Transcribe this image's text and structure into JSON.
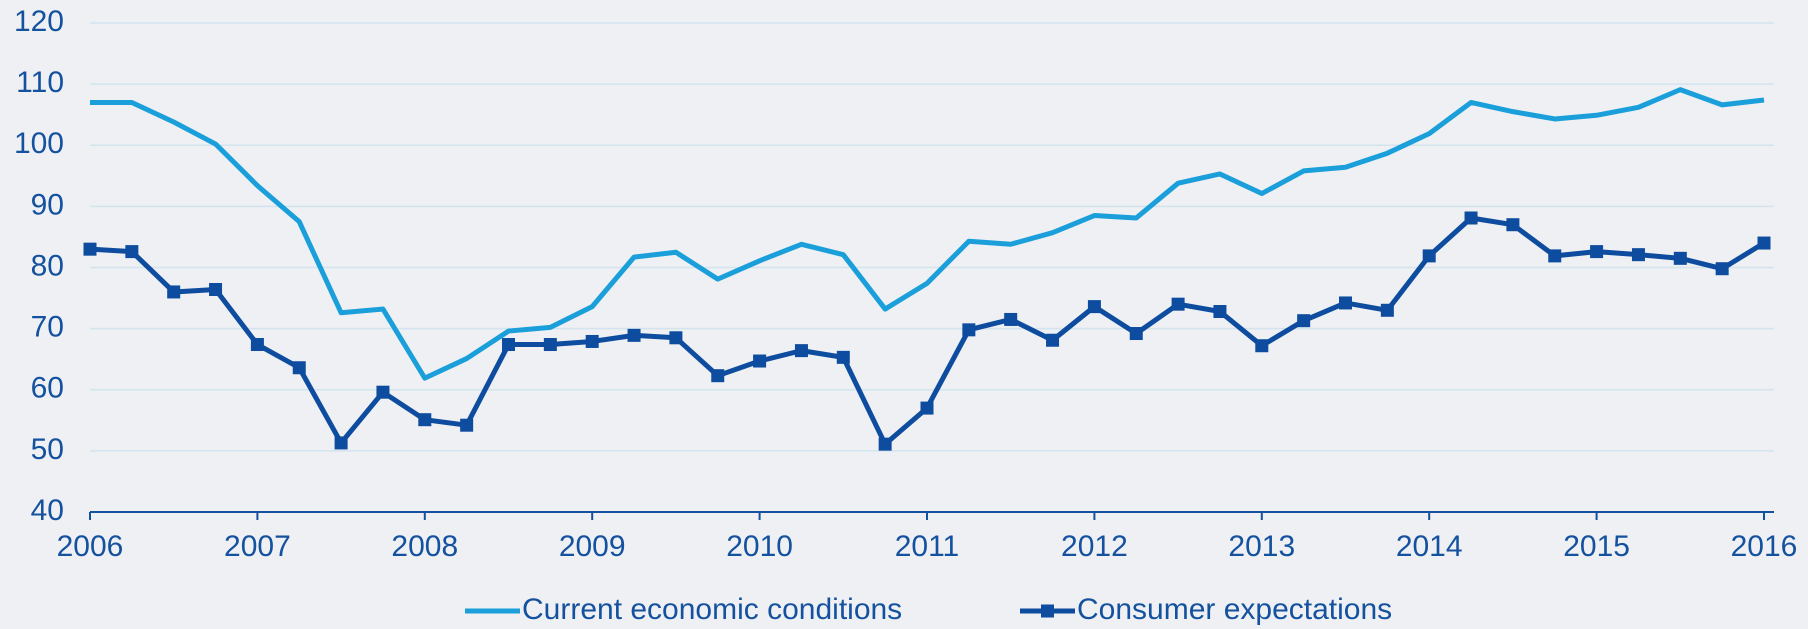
{
  "chart_data": {
    "type": "line",
    "x": [
      2006,
      2006.25,
      2006.5,
      2006.75,
      2007,
      2007.25,
      2007.5,
      2007.75,
      2008,
      2008.25,
      2008.5,
      2008.75,
      2009,
      2009.25,
      2009.5,
      2009.75,
      2010,
      2010.25,
      2010.5,
      2010.75,
      2011,
      2011.25,
      2011.5,
      2011.75,
      2012,
      2012.25,
      2012.5,
      2012.75,
      2013,
      2013.25,
      2013.5,
      2013.75,
      2014,
      2014.25,
      2014.5,
      2014.75,
      2015,
      2015.25,
      2015.5,
      2015.75,
      2016
    ],
    "series": [
      {
        "name": "Current economic conditions",
        "color": "#1a9fdb",
        "marker": false,
        "values": [
          107,
          107,
          103.8,
          100.2,
          93.4,
          87.5,
          72.6,
          73.2,
          61.9,
          65.1,
          69.6,
          70.2,
          73.6,
          81.7,
          82.5,
          78.1,
          81.1,
          83.8,
          82.1,
          73.2,
          77.4,
          84.3,
          83.8,
          85.7,
          88.5,
          88.1,
          93.8,
          95.3,
          92.1,
          95.8,
          96.4,
          98.7,
          101.9,
          107,
          105.5,
          104.3,
          104.9,
          106.2,
          109.1,
          106.6,
          107.4
        ]
      },
      {
        "name": "Consumer expectations",
        "color": "#0d4c9e",
        "marker": true,
        "values": [
          83,
          82.6,
          76,
          76.4,
          67.4,
          63.6,
          51.3,
          59.6,
          55.1,
          54.2,
          67.4,
          67.4,
          67.9,
          68.9,
          68.5,
          62.3,
          64.7,
          66.4,
          65.3,
          51.1,
          57,
          69.8,
          71.5,
          68.1,
          73.6,
          69.2,
          74,
          72.8,
          67.2,
          71.3,
          74.2,
          73,
          81.9,
          88.1,
          87,
          81.9,
          82.6,
          82.1,
          81.5,
          79.8,
          84
        ]
      }
    ],
    "xlim": [
      2006,
      2016
    ],
    "xticks": [
      2006,
      2007,
      2008,
      2009,
      2010,
      2011,
      2012,
      2013,
      2014,
      2015,
      2016
    ],
    "ylim": [
      40,
      120
    ],
    "yticks": [
      40,
      50,
      60,
      70,
      80,
      90,
      100,
      110,
      120
    ],
    "grid": true,
    "legend": "bottom"
  }
}
